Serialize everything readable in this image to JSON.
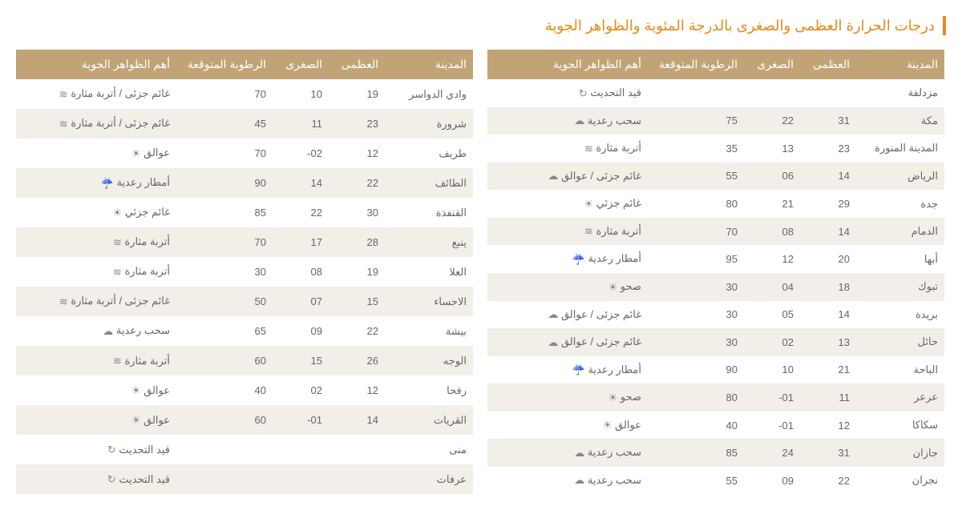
{
  "title": "درجات الحرارة العظمى والصغرى بالدرجة المئوية والظواهر الجوية",
  "columns": {
    "city": "المدينة",
    "max": "العظمى",
    "min": "الصغرى",
    "humidity": "الرطوبة المتوقعة",
    "condition": "أهم الظواهر الجوية"
  },
  "icons": {
    "updating": "↻",
    "thunder-clouds": "☁",
    "dust": "≋",
    "partly-cloudy-suspended": "☁",
    "partly-cloudy": "☀",
    "thunder-rain": "☔",
    "clear": "☀",
    "suspended": "☀",
    "partly-cloudy-dust": "≋"
  },
  "colors": {
    "accent": "#e8891a",
    "header_bg": "#c1a376",
    "header_text": "#ffffff",
    "row_odd": "#ffffff",
    "row_even": "#f2efe9",
    "text": "#666666"
  },
  "right_table": [
    {
      "city": "مزدلفة",
      "max": "",
      "min": "",
      "humidity": "",
      "condition": "قيد التحديث",
      "icon": "updating"
    },
    {
      "city": "مكة",
      "max": "31",
      "min": "22",
      "humidity": "75",
      "condition": "سحب رعدية",
      "icon": "thunder-clouds"
    },
    {
      "city": "المدينة المنورة",
      "max": "23",
      "min": "13",
      "humidity": "35",
      "condition": "أتربة مثارة",
      "icon": "dust"
    },
    {
      "city": "الرياض",
      "max": "14",
      "min": "06",
      "humidity": "55",
      "condition": "غائم جزئى / عوالق",
      "icon": "partly-cloudy-suspended"
    },
    {
      "city": "جدة",
      "max": "29",
      "min": "21",
      "humidity": "80",
      "condition": "غائم جزئي",
      "icon": "partly-cloudy"
    },
    {
      "city": "الدمام",
      "max": "14",
      "min": "08",
      "humidity": "70",
      "condition": "أتربة مثارة",
      "icon": "dust"
    },
    {
      "city": "أبها",
      "max": "20",
      "min": "12",
      "humidity": "95",
      "condition": "أمطار رعدية",
      "icon": "thunder-rain"
    },
    {
      "city": "تبوك",
      "max": "18",
      "min": "04",
      "humidity": "30",
      "condition": "صحو",
      "icon": "clear"
    },
    {
      "city": "بريدة",
      "max": "14",
      "min": "05",
      "humidity": "30",
      "condition": "غائم جزئى / عوالق",
      "icon": "partly-cloudy-suspended"
    },
    {
      "city": "حائل",
      "max": "13",
      "min": "02",
      "humidity": "30",
      "condition": "غائم جزئى / عوالق",
      "icon": "partly-cloudy-suspended"
    },
    {
      "city": "الباحة",
      "max": "21",
      "min": "10",
      "humidity": "90",
      "condition": "أمطار رعدية",
      "icon": "thunder-rain"
    },
    {
      "city": "عرعر",
      "max": "11",
      "min": "01-",
      "humidity": "80",
      "condition": "صحو",
      "icon": "clear"
    },
    {
      "city": "سكاكا",
      "max": "12",
      "min": "01-",
      "humidity": "40",
      "condition": "عوالق",
      "icon": "suspended"
    },
    {
      "city": "جازان",
      "max": "31",
      "min": "24",
      "humidity": "85",
      "condition": "سحب رعدية",
      "icon": "thunder-clouds"
    },
    {
      "city": "نجران",
      "max": "22",
      "min": "09",
      "humidity": "55",
      "condition": "سحب رعدية",
      "icon": "thunder-clouds"
    }
  ],
  "left_table": [
    {
      "city": "وادي الدواسر",
      "max": "19",
      "min": "10",
      "humidity": "70",
      "condition": "غائم جزئى / أتربة مثارة",
      "icon": "partly-cloudy-dust"
    },
    {
      "city": "شرورة",
      "max": "23",
      "min": "11",
      "humidity": "45",
      "condition": "غائم جزئى / أتربة مثارة",
      "icon": "partly-cloudy-dust"
    },
    {
      "city": "طريف",
      "max": "12",
      "min": "02-",
      "humidity": "70",
      "condition": "عوالق",
      "icon": "suspended"
    },
    {
      "city": "الطائف",
      "max": "22",
      "min": "14",
      "humidity": "90",
      "condition": "أمطار رعدية",
      "icon": "thunder-rain"
    },
    {
      "city": "القنفذة",
      "max": "30",
      "min": "22",
      "humidity": "85",
      "condition": "غائم جزئي",
      "icon": "partly-cloudy"
    },
    {
      "city": "ينبع",
      "max": "28",
      "min": "17",
      "humidity": "70",
      "condition": "أتربة مثارة",
      "icon": "dust"
    },
    {
      "city": "العلا",
      "max": "19",
      "min": "08",
      "humidity": "30",
      "condition": "أتربة مثارة",
      "icon": "dust"
    },
    {
      "city": "الاحساء",
      "max": "15",
      "min": "07",
      "humidity": "50",
      "condition": "غائم جزئى / أتربة مثارة",
      "icon": "partly-cloudy-dust"
    },
    {
      "city": "بيشة",
      "max": "22",
      "min": "09",
      "humidity": "65",
      "condition": "سحب رعدية",
      "icon": "thunder-clouds"
    },
    {
      "city": "الوجه",
      "max": "26",
      "min": "15",
      "humidity": "60",
      "condition": "أتربة مثارة",
      "icon": "dust"
    },
    {
      "city": "رفحا",
      "max": "12",
      "min": "02",
      "humidity": "40",
      "condition": "عوالق",
      "icon": "suspended"
    },
    {
      "city": "القريات",
      "max": "14",
      "min": "01-",
      "humidity": "60",
      "condition": "عوالق",
      "icon": "suspended"
    },
    {
      "city": "منى",
      "max": "",
      "min": "",
      "humidity": "",
      "condition": "قيد التحديث",
      "icon": "updating"
    },
    {
      "city": "عرفات",
      "max": "",
      "min": "",
      "humidity": "",
      "condition": "قيد التحديث",
      "icon": "updating"
    }
  ]
}
